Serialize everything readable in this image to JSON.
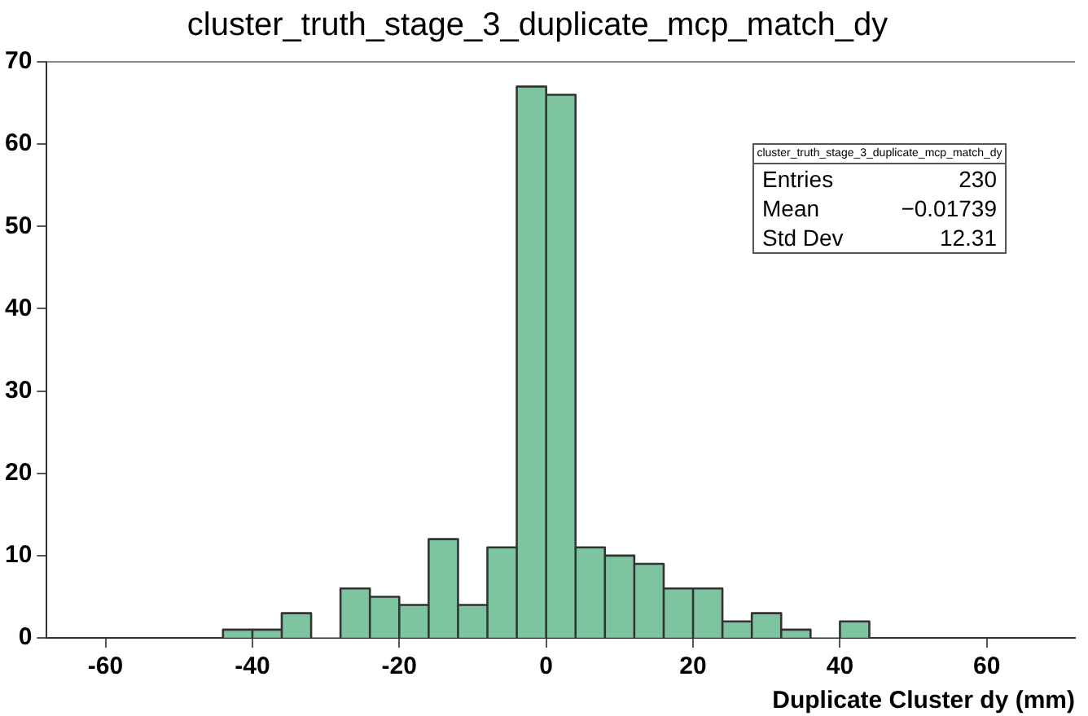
{
  "chart_data": {
    "type": "histogram",
    "title": "cluster_truth_stage_3_duplicate_mcp_match_dy",
    "xlabel": "Duplicate Cluster dy (mm)",
    "bins": [
      -44,
      -40,
      -36,
      -32,
      -28,
      -24,
      -20,
      -16,
      -12,
      -8,
      -4,
      0,
      4,
      8,
      12,
      16,
      20,
      24,
      28,
      32,
      36,
      40,
      44
    ],
    "values": [
      1,
      1,
      3,
      0,
      6,
      5,
      4,
      12,
      4,
      11,
      67,
      66,
      11,
      10,
      9,
      6,
      6,
      2,
      3,
      1,
      0,
      2
    ],
    "color": "#7fc4a0",
    "xlim": [
      -68,
      72
    ],
    "xticks": [
      -60,
      -40,
      -20,
      0,
      20,
      40,
      60
    ],
    "ylim": [
      0,
      70
    ],
    "yticks": [
      0,
      10,
      20,
      30,
      40,
      50,
      60,
      70
    ],
    "grid": false,
    "legend": false,
    "annotations": [
      "cluster_truth_stage_3_duplicate_mcp_match_dy",
      "Entries 230",
      "Mean −0.01739",
      "Std Dev 12.31"
    ]
  }
}
